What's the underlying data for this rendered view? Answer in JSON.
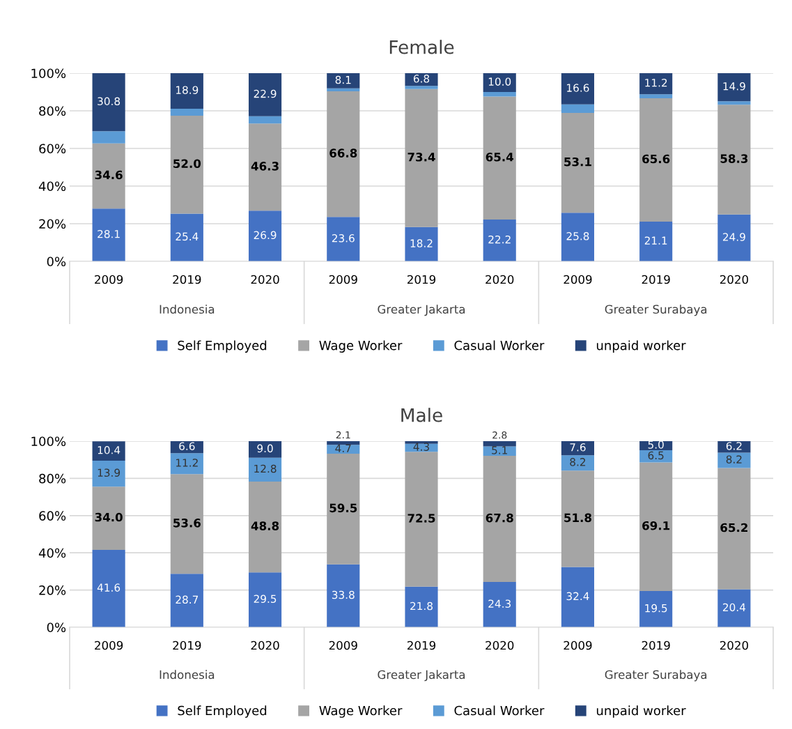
{
  "chart_data": [
    {
      "type": "bar",
      "title": "Female",
      "stacked": true,
      "grid": "y",
      "legend": "bottom",
      "categories": [
        "2009",
        "2019",
        "2020",
        "2009",
        "2019",
        "2020",
        "2009",
        "2019",
        "2020"
      ],
      "annotations": [
        "Indonesia",
        "Greater Jakarta",
        "Greater Surabaya"
      ],
      "ylim": [
        0,
        100
      ],
      "yticks": [
        {
          "value": 0,
          "label": "0%"
        },
        {
          "value": 20,
          "label": "20%"
        },
        {
          "value": 40,
          "label": "40%"
        },
        {
          "value": 60,
          "label": "60%"
        },
        {
          "value": 80,
          "label": "80%"
        },
        {
          "value": 100,
          "label": "100%"
        }
      ],
      "series": [
        {
          "name": "Self Employed",
          "color": "#4472c4",
          "values": [
            28.1,
            25.4,
            26.9,
            23.6,
            18.2,
            22.2,
            25.8,
            21.1,
            24.9
          ],
          "value_labels": [
            "28.1",
            "25.4",
            "26.9",
            "23.6",
            "18.2",
            "22.2",
            "25.8",
            "21.1",
            "24.9"
          ]
        },
        {
          "name": "Wage Worker",
          "color": "#a5a5a5",
          "values": [
            34.6,
            52.0,
            46.3,
            66.8,
            73.4,
            65.4,
            53.1,
            65.6,
            58.3
          ],
          "value_labels": [
            "34.6",
            "52.0",
            "46.3",
            "66.8",
            "73.4",
            "65.4",
            "53.1",
            "65.6",
            "58.3"
          ]
        },
        {
          "name": "Casual Worker",
          "color": "#5b9bd5",
          "values": [
            6.5,
            3.7,
            3.9,
            1.5,
            1.6,
            2.4,
            4.5,
            2.1,
            1.9
          ],
          "value_labels": [
            null,
            null,
            null,
            null,
            null,
            null,
            null,
            null,
            null
          ]
        },
        {
          "name": "unpaid worker",
          "color": "#264478",
          "values": [
            30.8,
            18.9,
            22.9,
            8.1,
            6.8,
            10.0,
            16.6,
            11.2,
            14.9
          ],
          "value_labels": [
            "30.8",
            "18.9",
            "22.9",
            "8.1",
            "6.8",
            "10.0",
            "16.6",
            "11.2",
            "14.9"
          ]
        }
      ]
    },
    {
      "type": "bar",
      "title": "Male",
      "stacked": true,
      "grid": "y",
      "legend": "bottom",
      "categories": [
        "2009",
        "2019",
        "2020",
        "2009",
        "2019",
        "2020",
        "2009",
        "2019",
        "2020"
      ],
      "annotations": [
        "Indonesia",
        "Greater Jakarta",
        "Greater Surabaya"
      ],
      "ylim": [
        0,
        100
      ],
      "yticks": [
        {
          "value": 0,
          "label": "0%"
        },
        {
          "value": 20,
          "label": "20%"
        },
        {
          "value": 40,
          "label": "40%"
        },
        {
          "value": 60,
          "label": "60%"
        },
        {
          "value": 80,
          "label": "80%"
        },
        {
          "value": 100,
          "label": "100%"
        }
      ],
      "series": [
        {
          "name": "Self Employed",
          "color": "#4472c4",
          "values": [
            41.6,
            28.7,
            29.5,
            33.8,
            21.8,
            24.3,
            32.4,
            19.5,
            20.4
          ],
          "value_labels": [
            "41.6",
            "28.7",
            "29.5",
            "33.8",
            "21.8",
            "24.3",
            "32.4",
            "19.5",
            "20.4"
          ]
        },
        {
          "name": "Wage Worker",
          "color": "#a5a5a5",
          "values": [
            34.0,
            53.6,
            48.8,
            59.5,
            72.5,
            67.8,
            51.8,
            69.1,
            65.2
          ],
          "value_labels": [
            "34.0",
            "53.6",
            "48.8",
            "59.5",
            "72.5",
            "67.8",
            "51.8",
            "69.1",
            "65.2"
          ]
        },
        {
          "name": "Casual Worker",
          "color": "#5b9bd5",
          "values": [
            13.9,
            11.2,
            12.8,
            4.7,
            4.3,
            5.1,
            8.2,
            6.5,
            8.2
          ],
          "value_labels": [
            "13.9",
            "11.2",
            "12.8",
            "4.7",
            "4.3",
            "5.1",
            "8.2",
            "6.5",
            "8.2"
          ]
        },
        {
          "name": "unpaid worker",
          "color": "#264478",
          "values": [
            10.4,
            6.6,
            9.0,
            2.1,
            1.4,
            2.8,
            7.6,
            5.0,
            6.2
          ],
          "value_labels": [
            "10.4",
            "6.6",
            "9.0",
            "2.1",
            null,
            "2.8",
            "7.6",
            "5.0",
            "6.2"
          ]
        }
      ]
    }
  ]
}
